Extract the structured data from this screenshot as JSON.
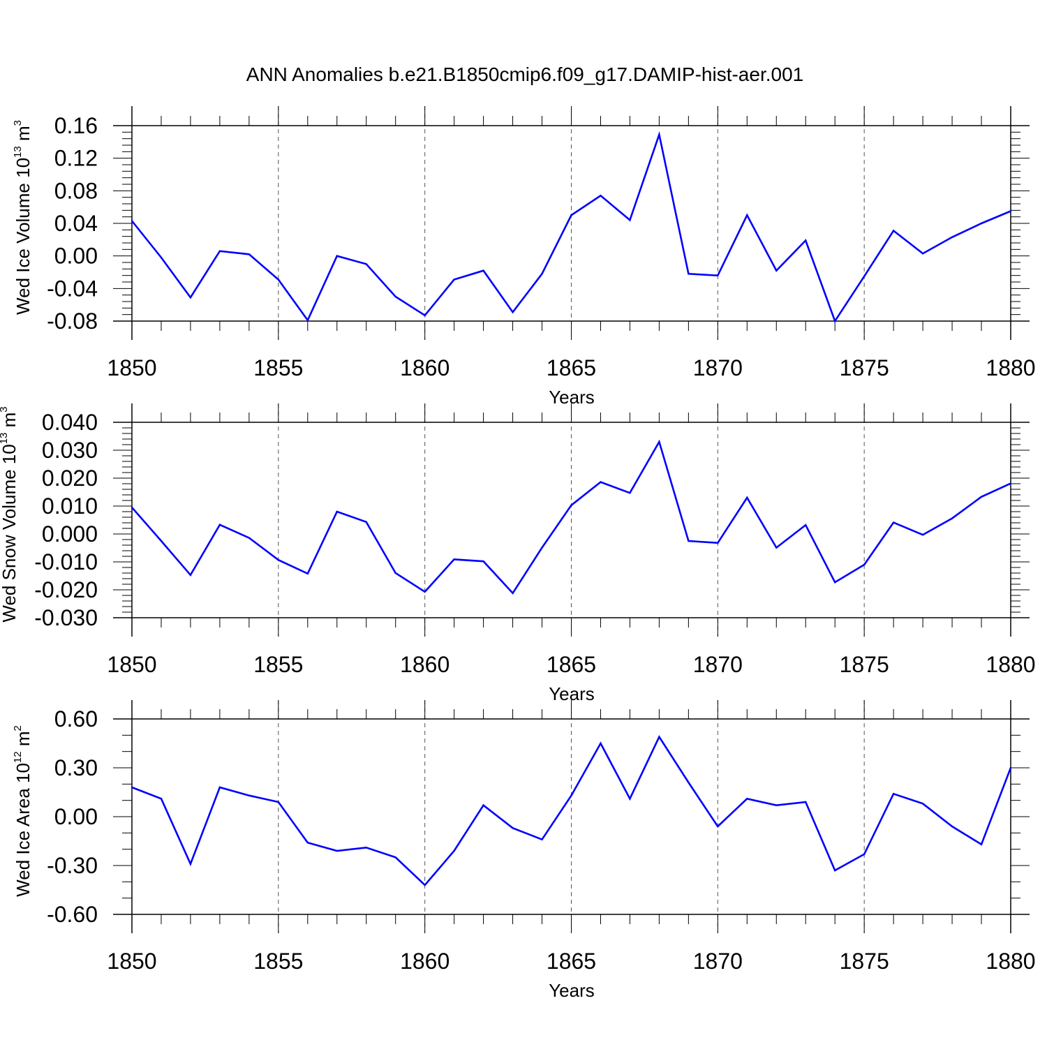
{
  "chart_data": [
    {
      "type": "line",
      "title": "ANN Anomalies b.e21.B1850cmip6.f09_g17.DAMIP-hist-aer.001",
      "xlabel": "Years",
      "ylabel": {
        "base": "Wed Ice Volume 10",
        "exp": "13",
        "unit": " m",
        "unit_exp": "3"
      },
      "xlim": [
        1850,
        1880
      ],
      "ylim": [
        -0.08,
        0.16
      ],
      "yticks": [
        -0.08,
        -0.04,
        0.0,
        0.04,
        0.08,
        0.12,
        0.16
      ],
      "ytick_labels": [
        "-0.08",
        "-0.04",
        "0.00",
        "0.04",
        "0.08",
        "0.12",
        "0.16"
      ],
      "xticks": [
        1850,
        1855,
        1860,
        1865,
        1870,
        1875,
        1880
      ],
      "xtick_labels": [
        "1850",
        "1855",
        "1860",
        "1865",
        "1870",
        "1875",
        "1880"
      ],
      "grid": "vertical dashed at major x ticks",
      "line_color": "#0000ff",
      "x": [
        1850,
        1851,
        1852,
        1853,
        1854,
        1855,
        1856,
        1857,
        1858,
        1859,
        1860,
        1861,
        1862,
        1863,
        1864,
        1865,
        1866,
        1867,
        1868,
        1869,
        1870,
        1871,
        1872,
        1873,
        1874,
        1875,
        1876,
        1877,
        1878,
        1879,
        1880
      ],
      "values": [
        0.043,
        -0.002,
        -0.051,
        0.006,
        0.002,
        -0.029,
        -0.079,
        0.0,
        -0.01,
        -0.05,
        -0.073,
        -0.029,
        -0.018,
        -0.069,
        -0.022,
        0.05,
        0.074,
        0.044,
        0.149,
        -0.022,
        -0.024,
        0.05,
        -0.018,
        0.019,
        -0.08,
        -0.025,
        0.031,
        0.003,
        0.023,
        0.04,
        0.055
      ]
    },
    {
      "type": "line",
      "title": "",
      "xlabel": "Years",
      "ylabel": {
        "base": "Wed Snow Volume 10",
        "exp": "13",
        "unit": " m",
        "unit_exp": "3"
      },
      "xlim": [
        1850,
        1880
      ],
      "ylim": [
        -0.03,
        0.04
      ],
      "yticks": [
        -0.03,
        -0.02,
        -0.01,
        0.0,
        0.01,
        0.02,
        0.03,
        0.04
      ],
      "ytick_labels": [
        "-0.030",
        "-0.020",
        "-0.010",
        "0.000",
        "0.010",
        "0.020",
        "0.030",
        "0.040"
      ],
      "xticks": [
        1850,
        1855,
        1860,
        1865,
        1870,
        1875,
        1880
      ],
      "xtick_labels": [
        "1850",
        "1855",
        "1860",
        "1865",
        "1870",
        "1875",
        "1880"
      ],
      "grid": "vertical dashed at major x ticks",
      "line_color": "#0000ff",
      "x": [
        1850,
        1851,
        1852,
        1853,
        1854,
        1855,
        1856,
        1857,
        1858,
        1859,
        1860,
        1861,
        1862,
        1863,
        1864,
        1865,
        1866,
        1867,
        1868,
        1869,
        1870,
        1871,
        1872,
        1873,
        1874,
        1875,
        1876,
        1877,
        1878,
        1879,
        1880
      ],
      "values": [
        0.0095,
        -0.0025,
        -0.0147,
        0.0033,
        -0.0014,
        -0.0093,
        -0.0142,
        0.008,
        0.0043,
        -0.014,
        -0.0207,
        -0.0091,
        -0.0098,
        -0.0212,
        -0.0049,
        0.0103,
        0.0186,
        0.0147,
        0.033,
        -0.0025,
        -0.0032,
        0.013,
        -0.0049,
        0.0032,
        -0.0173,
        -0.011,
        0.0041,
        -0.0003,
        0.0056,
        0.0133,
        0.0181
      ]
    },
    {
      "type": "line",
      "title": "",
      "xlabel": "Years",
      "ylabel": {
        "base": "Wed Ice Area 10",
        "exp": "12",
        "unit": " m",
        "unit_exp": "2"
      },
      "xlim": [
        1850,
        1880
      ],
      "ylim": [
        -0.6,
        0.6
      ],
      "yticks": [
        -0.6,
        -0.3,
        0.0,
        0.3,
        0.6
      ],
      "ytick_labels": [
        "-0.60",
        "-0.30",
        "0.00",
        "0.30",
        "0.60"
      ],
      "xticks": [
        1850,
        1855,
        1860,
        1865,
        1870,
        1875,
        1880
      ],
      "xtick_labels": [
        "1850",
        "1855",
        "1860",
        "1865",
        "1870",
        "1875",
        "1880"
      ],
      "grid": "vertical dashed at major x ticks",
      "line_color": "#0000ff",
      "x": [
        1850,
        1851,
        1852,
        1853,
        1854,
        1855,
        1856,
        1857,
        1858,
        1859,
        1860,
        1861,
        1862,
        1863,
        1864,
        1865,
        1866,
        1867,
        1868,
        1869,
        1870,
        1871,
        1872,
        1873,
        1874,
        1875,
        1876,
        1877,
        1878,
        1879,
        1880
      ],
      "values": [
        0.18,
        0.11,
        -0.29,
        0.18,
        0.13,
        0.09,
        -0.16,
        -0.21,
        -0.19,
        -0.25,
        -0.42,
        -0.21,
        0.07,
        -0.07,
        -0.14,
        0.13,
        0.45,
        0.11,
        0.49,
        0.21,
        -0.06,
        0.11,
        0.07,
        0.09,
        -0.33,
        -0.23,
        0.14,
        0.08,
        -0.06,
        -0.17,
        0.3
      ]
    }
  ]
}
